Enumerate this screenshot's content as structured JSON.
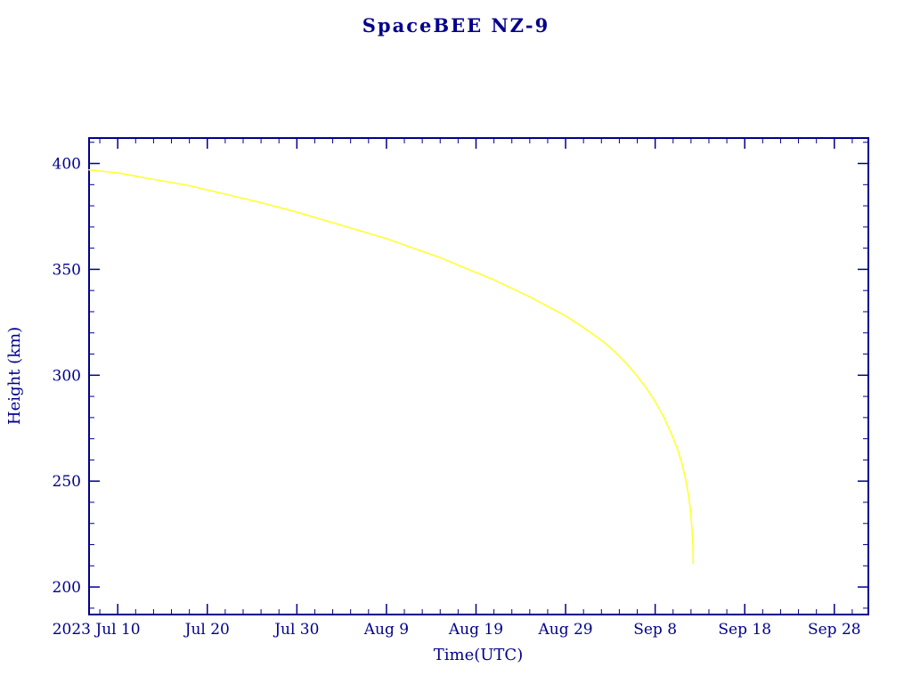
{
  "title": "SpaceBEE NZ-9",
  "colors": {
    "axis": "#00008B",
    "curve": "#FFFF33",
    "background": "#FFFFFF"
  },
  "chart_data": {
    "type": "line",
    "title": "SpaceBEE NZ-9",
    "xlabel": "Time(UTC)",
    "ylabel": "Height (km)",
    "x_unit": "days since 2023 Jul 10",
    "year_label": "2023",
    "xlim": [
      -3.2,
      83.8
    ],
    "ylim": [
      187,
      412
    ],
    "x_ticks": [
      {
        "pos": 0,
        "label": "Jul 10"
      },
      {
        "pos": 10,
        "label": "Jul 20"
      },
      {
        "pos": 20,
        "label": "Jul 30"
      },
      {
        "pos": 30,
        "label": "Aug 9"
      },
      {
        "pos": 40,
        "label": "Aug 19"
      },
      {
        "pos": 50,
        "label": "Aug 29"
      },
      {
        "pos": 60,
        "label": "Sep 8"
      },
      {
        "pos": 70,
        "label": "Sep 18"
      },
      {
        "pos": 80,
        "label": "Sep 28"
      }
    ],
    "y_ticks": [
      {
        "pos": 200,
        "label": "200"
      },
      {
        "pos": 250,
        "label": "250"
      },
      {
        "pos": 300,
        "label": "300"
      },
      {
        "pos": 350,
        "label": "350"
      },
      {
        "pos": 400,
        "label": "400"
      }
    ],
    "x_minor_step": 2,
    "y_minor_step": 10,
    "grid": false,
    "legend": "none",
    "series": [
      {
        "name": "height",
        "color": "#FFFF33",
        "x": [
          -3.2,
          0,
          4,
          8,
          12,
          16,
          20,
          24,
          28,
          30,
          32,
          34,
          36,
          38,
          40,
          42,
          44,
          46,
          48,
          50,
          52,
          54,
          55,
          56,
          57,
          58,
          59,
          60,
          61,
          62,
          62.5,
          63,
          63.4,
          63.7,
          63.9,
          64.1,
          64.2,
          64.25
        ],
        "y": [
          397,
          395.5,
          392.5,
          389.5,
          385.5,
          381.5,
          377,
          372,
          367,
          364.5,
          361.5,
          358.5,
          355.5,
          352,
          348.5,
          345,
          341,
          337,
          332.5,
          328,
          322.5,
          316.5,
          313,
          309,
          304.5,
          299.5,
          294,
          287.5,
          280,
          270.5,
          265,
          258,
          251,
          244,
          237.5,
          228,
          220,
          211
        ]
      }
    ]
  }
}
